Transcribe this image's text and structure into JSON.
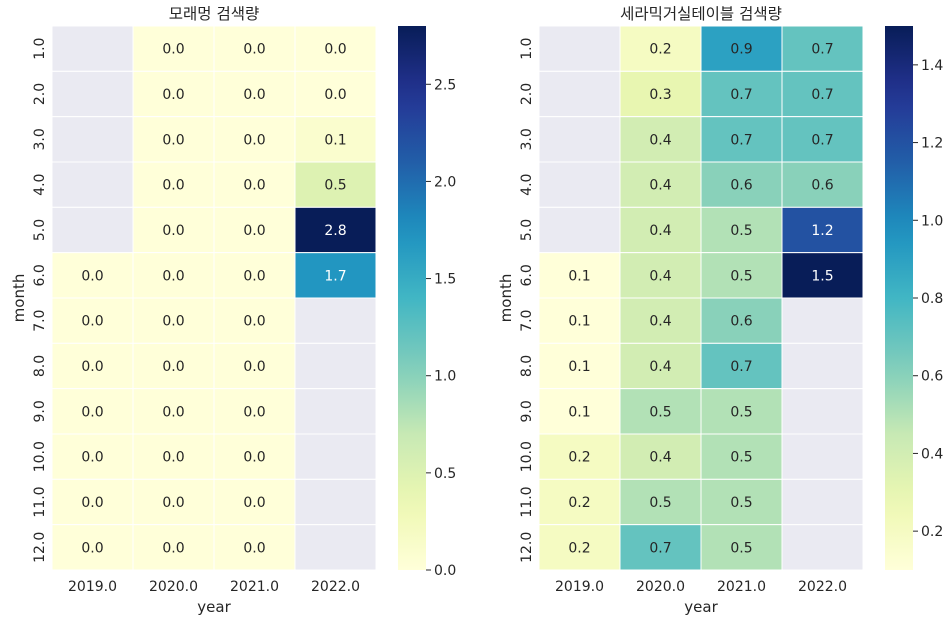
{
  "chart_data": [
    {
      "type": "heatmap",
      "title": "모래멍 검색량",
      "xlabel": "year",
      "ylabel": "month",
      "x_categories": [
        "2019.0",
        "2020.0",
        "2021.0",
        "2022.0"
      ],
      "y_categories": [
        "1.0",
        "2.0",
        "3.0",
        "4.0",
        "5.0",
        "6.0",
        "7.0",
        "8.0",
        "9.0",
        "10.0",
        "11.0",
        "12.0"
      ],
      "values": [
        [
          null,
          0.0,
          0.0,
          0.0
        ],
        [
          null,
          0.0,
          0.0,
          0.0
        ],
        [
          null,
          0.0,
          0.0,
          0.1
        ],
        [
          null,
          0.0,
          0.0,
          0.5
        ],
        [
          null,
          0.0,
          0.0,
          2.8
        ],
        [
          0.0,
          0.0,
          0.0,
          1.7
        ],
        [
          0.0,
          0.0,
          0.0,
          null
        ],
        [
          0.0,
          0.0,
          0.0,
          null
        ],
        [
          0.0,
          0.0,
          0.0,
          null
        ],
        [
          0.0,
          0.0,
          0.0,
          null
        ],
        [
          0.0,
          0.0,
          0.0,
          null
        ],
        [
          0.0,
          0.0,
          0.0,
          null
        ]
      ],
      "annotation_format": "0.0",
      "colormap": "YlGnBu",
      "missing_color": "#eaeaf2",
      "colorbar": {
        "min": 0.0,
        "max": 2.8,
        "ticks": [
          0.0,
          0.5,
          1.0,
          1.5,
          2.0,
          2.5
        ]
      }
    },
    {
      "type": "heatmap",
      "title": "세라믹거실테이블 검색량",
      "xlabel": "year",
      "ylabel": "month",
      "x_categories": [
        "2019.0",
        "2020.0",
        "2021.0",
        "2022.0"
      ],
      "y_categories": [
        "1.0",
        "2.0",
        "3.0",
        "4.0",
        "5.0",
        "6.0",
        "7.0",
        "8.0",
        "9.0",
        "10.0",
        "11.0",
        "12.0"
      ],
      "values": [
        [
          null,
          0.2,
          0.9,
          0.7
        ],
        [
          null,
          0.3,
          0.7,
          0.7
        ],
        [
          null,
          0.4,
          0.7,
          0.7
        ],
        [
          null,
          0.4,
          0.6,
          0.6
        ],
        [
          null,
          0.4,
          0.5,
          1.2
        ],
        [
          0.1,
          0.4,
          0.5,
          1.5
        ],
        [
          0.1,
          0.4,
          0.6,
          null
        ],
        [
          0.1,
          0.4,
          0.7,
          null
        ],
        [
          0.1,
          0.5,
          0.5,
          null
        ],
        [
          0.2,
          0.4,
          0.5,
          null
        ],
        [
          0.2,
          0.5,
          0.5,
          null
        ],
        [
          0.2,
          0.7,
          0.5,
          null
        ]
      ],
      "annotation_format": "0.0",
      "colormap": "YlGnBu",
      "missing_color": "#eaeaf2",
      "colorbar": {
        "min": 0.1,
        "max": 1.5,
        "ticks": [
          0.2,
          0.4,
          0.6,
          0.8,
          1.0,
          1.2,
          1.4
        ]
      }
    }
  ]
}
